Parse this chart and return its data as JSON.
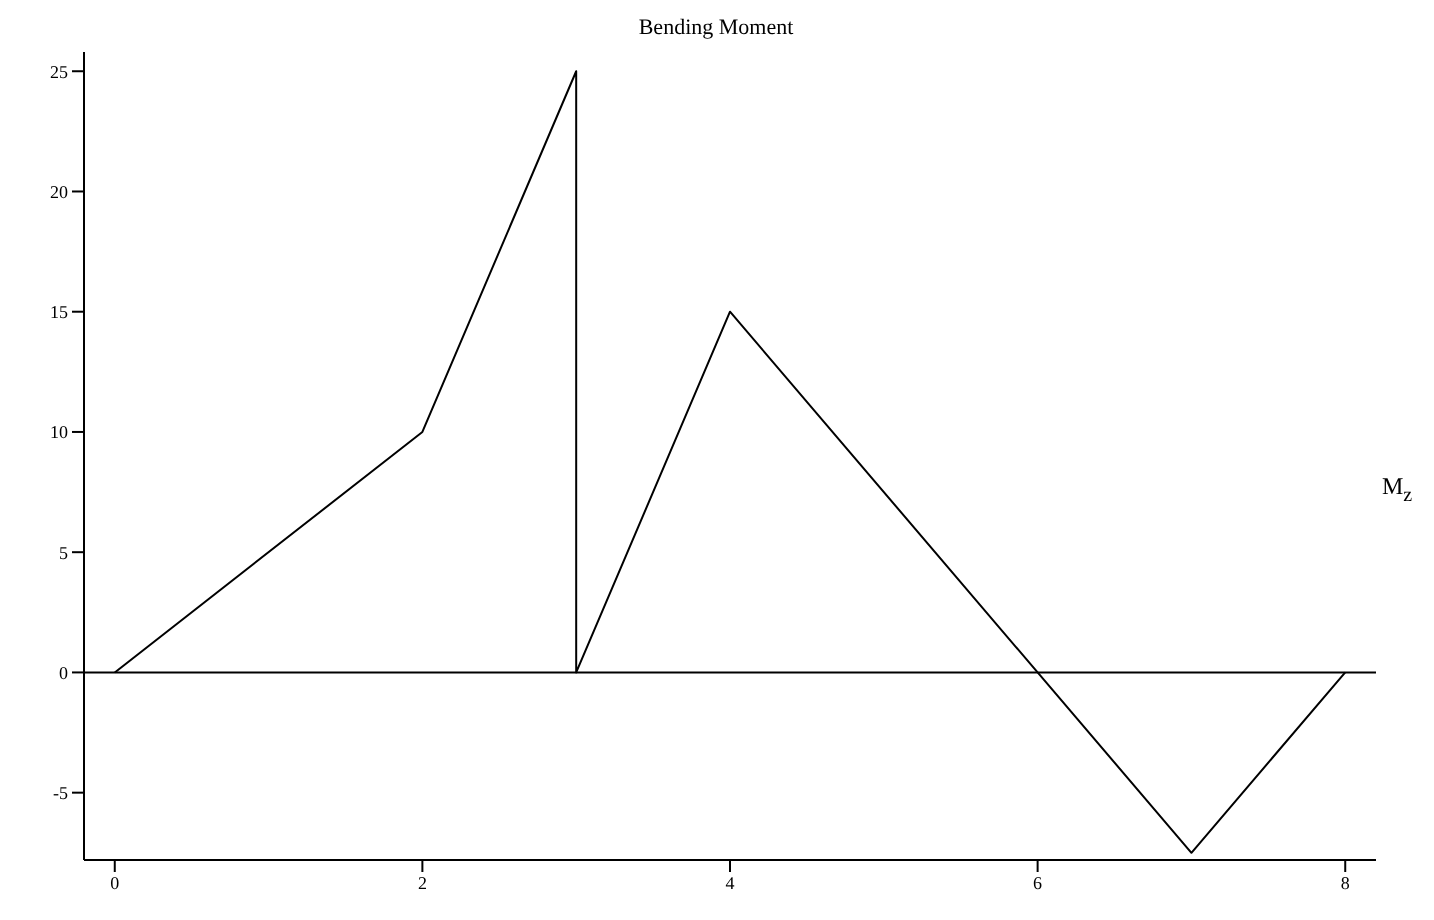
{
  "chart_data": {
    "type": "line",
    "title": "Bending Moment",
    "ylabel": "M$_{z}$",
    "x": [
      0,
      2,
      3,
      3,
      4,
      6,
      7,
      8
    ],
    "series": [
      {
        "color": "#000000",
        "values": [
          0,
          10,
          25,
          0,
          15,
          0,
          -7.5,
          0
        ]
      }
    ],
    "xlim": [
      -0.2,
      8.2
    ],
    "xticks": [
      0,
      2,
      4,
      6,
      8
    ],
    "ylim": [
      -7.8,
      25.8
    ],
    "yticks": [
      -5,
      0,
      5,
      10,
      15,
      20,
      25
    ],
    "ref_lines": [
      {
        "axis": "y",
        "value": 0,
        "color": "#000000"
      }
    ],
    "grid": false,
    "marker": "none",
    "line_style": "solid"
  }
}
